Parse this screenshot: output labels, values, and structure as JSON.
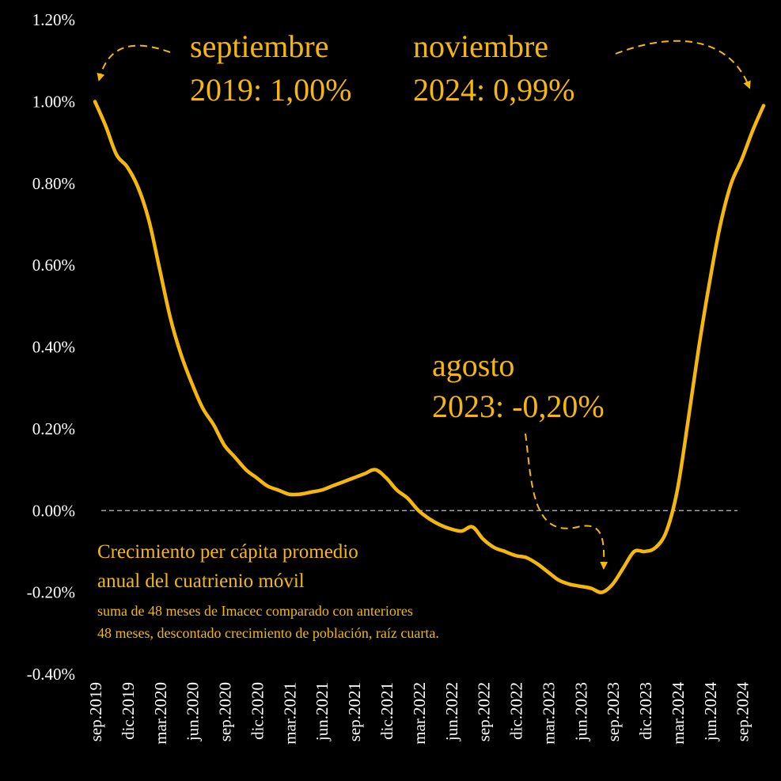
{
  "chart_data": {
    "type": "line",
    "title": "",
    "xlabel": "",
    "ylabel": "",
    "ylim": [
      -0.4,
      1.2
    ],
    "y_ticks": [
      "1.20%",
      "1.00%",
      "0.80%",
      "0.60%",
      "0.40%",
      "0.20%",
      "0.00%",
      "-0.20%",
      "-0.40%"
    ],
    "x_ticks": [
      "sep.2019",
      "dic.2019",
      "mar.2020",
      "jun.2020",
      "sep.2020",
      "dic.2020",
      "mar.2021",
      "jun.2021",
      "sep.2021",
      "dic.2021",
      "mar.2022",
      "jun.2022",
      "sep.2022",
      "dic.2022",
      "mar.2023",
      "jun.2023",
      "sep.2023",
      "dic.2023",
      "mar.2024",
      "jun.2024",
      "sep.2024"
    ],
    "reference_line": {
      "y": 0.0,
      "style": "dashed",
      "color": "#bfbfbf"
    },
    "grid": false,
    "line_color": "#f5b80a",
    "series": [
      {
        "name": "",
        "x": [
          "sep.2019",
          "oct.2019",
          "nov.2019",
          "dic.2019",
          "ene.2020",
          "feb.2020",
          "mar.2020",
          "abr.2020",
          "may.2020",
          "jun.2020",
          "jul.2020",
          "ago.2020",
          "sep.2020",
          "oct.2020",
          "nov.2020",
          "dic.2020",
          "ene.2021",
          "feb.2021",
          "mar.2021",
          "abr.2021",
          "may.2021",
          "jun.2021",
          "jul.2021",
          "ago.2021",
          "sep.2021",
          "oct.2021",
          "nov.2021",
          "dic.2021",
          "ene.2022",
          "feb.2022",
          "mar.2022",
          "abr.2022",
          "may.2022",
          "jun.2022",
          "jul.2022",
          "ago.2022",
          "sep.2022",
          "oct.2022",
          "nov.2022",
          "dic.2022",
          "ene.2023",
          "feb.2023",
          "mar.2023",
          "abr.2023",
          "may.2023",
          "jun.2023",
          "jul.2023",
          "ago.2023",
          "sep.2023",
          "oct.2023",
          "nov.2023",
          "dic.2023",
          "ene.2024",
          "feb.2024",
          "mar.2024",
          "abr.2024",
          "may.2024",
          "jun.2024",
          "jul.2024",
          "ago.2024",
          "sep.2024",
          "oct.2024",
          "nov.2024"
        ],
        "values": [
          1.0,
          0.94,
          0.87,
          0.84,
          0.79,
          0.71,
          0.59,
          0.47,
          0.38,
          0.31,
          0.25,
          0.21,
          0.16,
          0.13,
          0.1,
          0.08,
          0.06,
          0.05,
          0.04,
          0.04,
          0.045,
          0.05,
          0.06,
          0.07,
          0.08,
          0.09,
          0.1,
          0.08,
          0.05,
          0.03,
          0.0,
          -0.02,
          -0.035,
          -0.045,
          -0.05,
          -0.04,
          -0.07,
          -0.09,
          -0.1,
          -0.11,
          -0.115,
          -0.13,
          -0.15,
          -0.17,
          -0.18,
          -0.185,
          -0.19,
          -0.2,
          -0.18,
          -0.14,
          -0.1,
          -0.1,
          -0.09,
          -0.05,
          0.05,
          0.22,
          0.4,
          0.56,
          0.7,
          0.8,
          0.86,
          0.93,
          0.99
        ]
      }
    ]
  },
  "annotations": {
    "sep2019": {
      "line1": "septiembre",
      "line2": "2019: 1,00%"
    },
    "nov2024": {
      "line1": "noviembre",
      "line2": "2024: 0,99%"
    },
    "ago2023": {
      "line1": "agosto",
      "line2": "2023: -0,20%"
    }
  },
  "note": {
    "line1": "Crecimiento per cápita promedio",
    "line2": "anual del cuatrienio móvil",
    "line3": "suma de 48 meses de Imacec comparado con anteriores",
    "line4": "48 meses, descontado crecimiento de población, raíz cuarta."
  }
}
